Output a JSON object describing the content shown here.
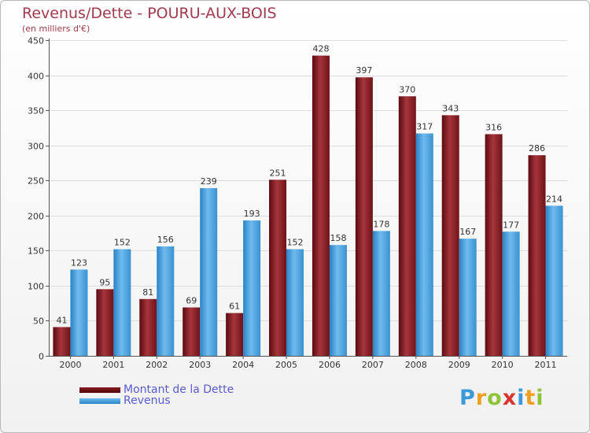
{
  "header": {
    "title": "Revenus/Dette - POURU-AUX-BOIS",
    "subtitle": "(en milliers d'€)"
  },
  "legend": {
    "items": [
      {
        "label": "Montant de la Dette",
        "color": "#6e0d13"
      },
      {
        "label": "Revenus",
        "color": "#3c9ad9"
      }
    ]
  },
  "brand": {
    "name": "Proxiti",
    "letters": [
      "P",
      "r",
      "o",
      "x",
      "i",
      "t",
      "i"
    ]
  },
  "chart_data": {
    "type": "bar",
    "title": "Revenus/Dette - POURU-AUX-BOIS",
    "subtitle": "(en milliers d'€)",
    "xlabel": "",
    "ylabel": "",
    "ylim": [
      0,
      450
    ],
    "yticks": [
      0,
      50,
      100,
      150,
      200,
      250,
      300,
      350,
      400,
      450
    ],
    "categories": [
      "2000",
      "2001",
      "2002",
      "2003",
      "2004",
      "2005",
      "2006",
      "2007",
      "2008",
      "2009",
      "2010",
      "2011"
    ],
    "series": [
      {
        "name": "Montant de la Dette",
        "color": "#6e0d13",
        "values": [
          41,
          95,
          81,
          69,
          61,
          251,
          428,
          397,
          370,
          343,
          316,
          286
        ]
      },
      {
        "name": "Revenus",
        "color": "#3c9ad9",
        "values": [
          123,
          152,
          156,
          239,
          193,
          152,
          158,
          178,
          317,
          167,
          177,
          214
        ]
      }
    ],
    "grid": true,
    "legend_position": "bottom-left"
  }
}
